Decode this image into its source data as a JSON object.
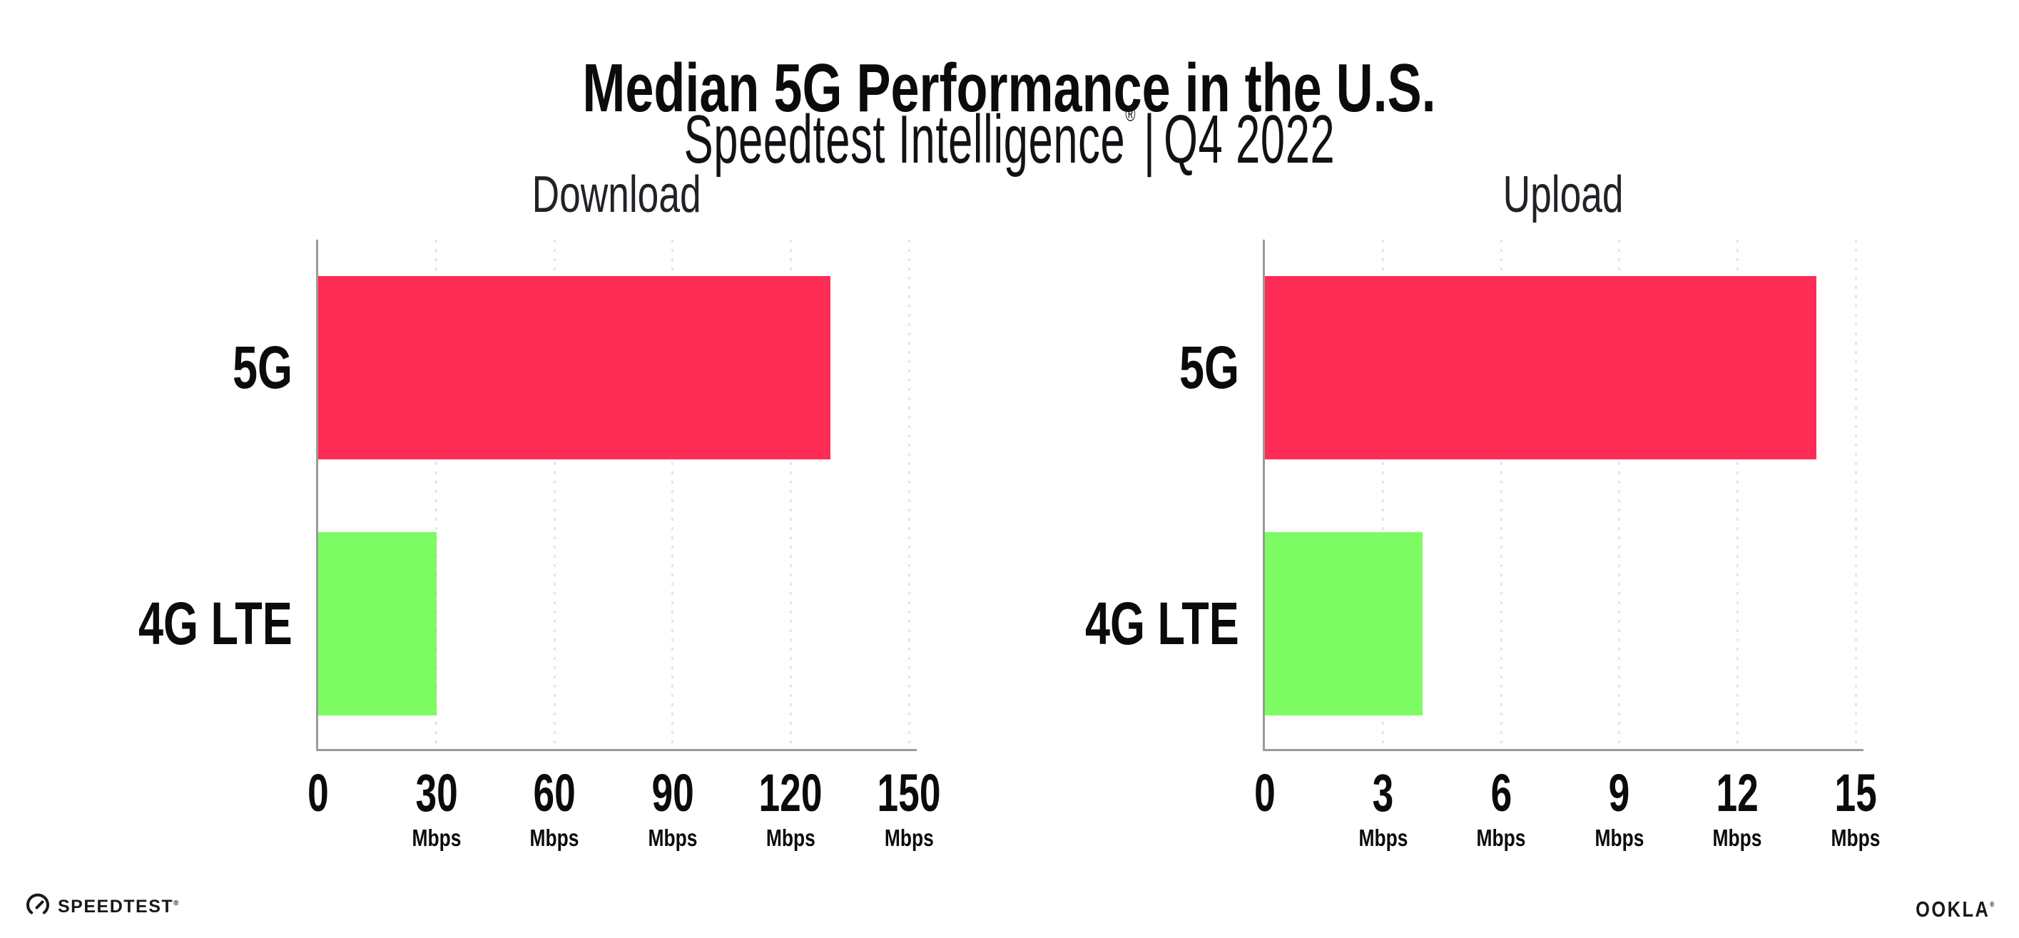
{
  "header": {
    "title": "Median 5G Performance in the U.S.",
    "subtitle": {
      "brand": "Speedtest Intelligence",
      "registered_mark": "®",
      "separator": "|",
      "period": "Q4 2022"
    }
  },
  "chart_data": [
    {
      "type": "bar",
      "orientation": "horizontal",
      "title": "Download",
      "categories": [
        "5G",
        "4G LTE"
      ],
      "values": [
        130,
        30
      ],
      "unit": "Mbps",
      "series_colors": {
        "5G": "#FD2D55",
        "4G LTE": "#7DFB63"
      },
      "xlim": [
        0,
        150
      ],
      "xticks": [
        0,
        30,
        60,
        90,
        120,
        150
      ],
      "xtick_unit": "Mbps",
      "grid": "vertical-dotted",
      "legend": "none"
    },
    {
      "type": "bar",
      "orientation": "horizontal",
      "title": "Upload",
      "categories": [
        "5G",
        "4G LTE"
      ],
      "values": [
        14,
        4
      ],
      "unit": "Mbps",
      "series_colors": {
        "5G": "#FD2D55",
        "4G LTE": "#7DFB63"
      },
      "xlim": [
        0,
        15
      ],
      "xticks": [
        0,
        3,
        6,
        9,
        12,
        15
      ],
      "xtick_unit": "Mbps",
      "grid": "vertical-dotted",
      "legend": "none"
    }
  ],
  "footer": {
    "speedtest": {
      "text": "SPEEDTEST",
      "mark": "®"
    },
    "ookla": {
      "text": "OOKLA",
      "mark": "®"
    }
  },
  "colors": {
    "bar_5g": "#FD2D55",
    "bar_4g_lte": "#7DFB63",
    "axis": "#9B9B9B",
    "gridline": "#E4E4EE",
    "text": "#0B0B0E"
  }
}
